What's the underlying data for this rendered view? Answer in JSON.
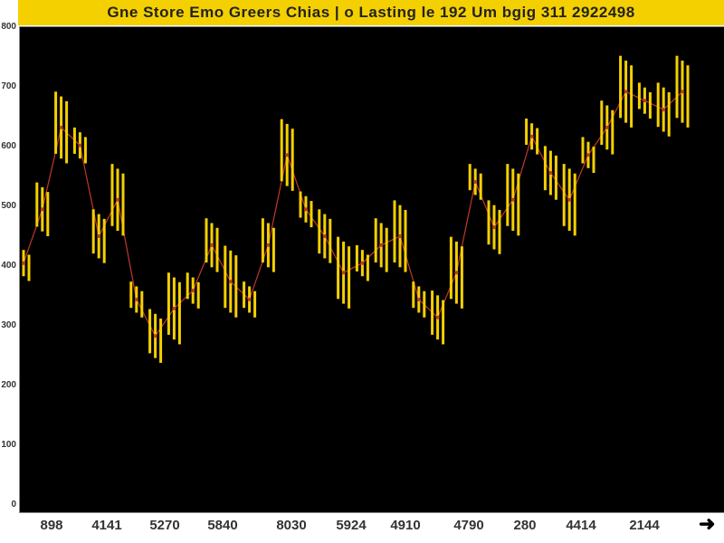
{
  "chart_data": {
    "type": "bar",
    "title": "Gne Store Emo Greers Chias | o Lasting le 192 Um bgig 311 2922498",
    "xlabel": "",
    "ylabel": "",
    "ylim": [
      0,
      800
    ],
    "grid": false,
    "background": "#000000",
    "bar_color": "#f5d000",
    "accent_color": "#c0392b",
    "y_tick_labels": [
      "800",
      "700",
      "600",
      "500",
      "400",
      "300",
      "200",
      "100",
      "0"
    ],
    "x_tick_labels": [
      "898",
      "4141",
      "5270",
      "5840",
      "8030",
      "5924",
      "4910",
      "4790",
      "280",
      "4414",
      "2144"
    ],
    "values": [
      405,
      495,
      632,
      602,
      450,
      511,
      344,
      283,
      329,
      359,
      435,
      374,
      344,
      435,
      586,
      495,
      450,
      389,
      405,
      435,
      450,
      344,
      314,
      389,
      541,
      465,
      511,
      617,
      556,
      511,
      586,
      632,
      692,
      677,
      662,
      692
    ]
  }
}
